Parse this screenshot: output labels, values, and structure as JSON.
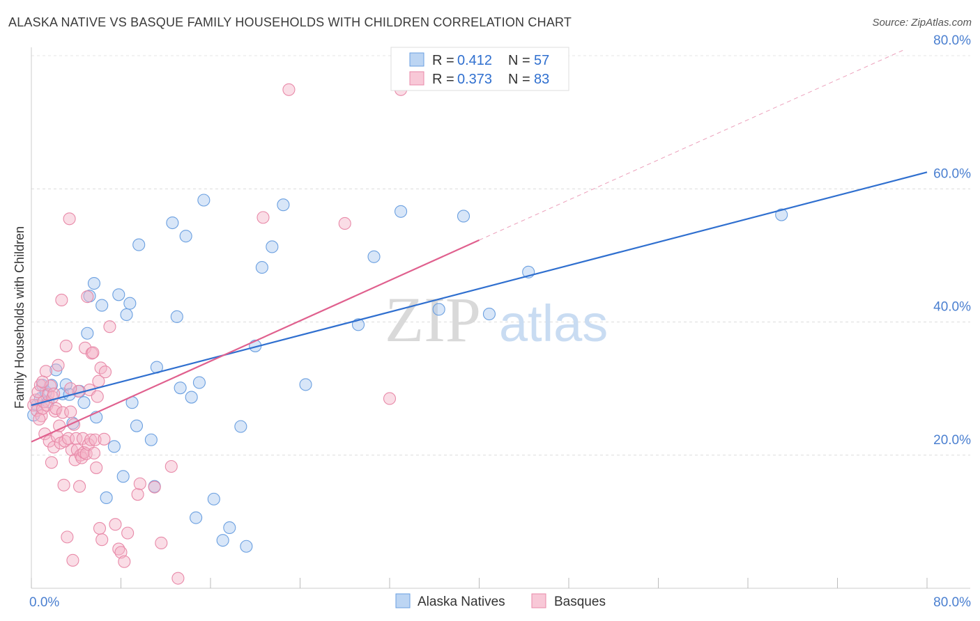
{
  "title": "ALASKA NATIVE VS BASQUE FAMILY HOUSEHOLDS WITH CHILDREN CORRELATION CHART",
  "source": "Source: ZipAtlas.com",
  "watermark": {
    "zip": "ZIP",
    "atlas": "atlas"
  },
  "legend_box": {
    "r_label": "R =",
    "n_label": "N =",
    "series": [
      {
        "r": "0.412",
        "n": "57"
      },
      {
        "r": "0.373",
        "n": "83"
      }
    ]
  },
  "colors": {
    "blue_fill": "#a8c8f0",
    "blue_stroke": "#6a9fe0",
    "blue_line": "#2f6fcf",
    "pink_fill": "#f5b3c8",
    "pink_stroke": "#e889a8",
    "pink_line": "#e0608e",
    "tick_text": "#4a7fd0"
  },
  "chart_data": {
    "type": "scatter",
    "title": "ALASKA NATIVE VS BASQUE FAMILY HOUSEHOLDS WITH CHILDREN CORRELATION CHART",
    "xlabel": "",
    "ylabel": "Family Households with Children",
    "xlim": [
      0,
      80
    ],
    "ylim": [
      0,
      80
    ],
    "x_tick_labels": {
      "0": "0.0%",
      "80": "80.0%"
    },
    "y_ticks": [
      {
        "value": 20,
        "label": "20.0%"
      },
      {
        "value": 40,
        "label": "40.0%"
      },
      {
        "value": 60,
        "label": "60.0%"
      },
      {
        "value": 80,
        "label": "80.0%"
      }
    ],
    "grid": true,
    "series": [
      {
        "name": "Alaska Natives",
        "color": "blue",
        "r": 0.412,
        "n": 57,
        "trend": {
          "x0": 0,
          "y0": 27.5,
          "x1": 80,
          "y1": 62.5
        },
        "points": [
          [
            0.2,
            26.0
          ],
          [
            0.5,
            27.5
          ],
          [
            0.8,
            28.5
          ],
          [
            1.0,
            30.5
          ],
          [
            1.3,
            29.5
          ],
          [
            1.5,
            28.0
          ],
          [
            1.8,
            30.5
          ],
          [
            2.2,
            32.8
          ],
          [
            2.8,
            29.2
          ],
          [
            3.1,
            30.6
          ],
          [
            3.4,
            29.1
          ],
          [
            3.7,
            24.8
          ],
          [
            4.3,
            29.6
          ],
          [
            4.7,
            27.9
          ],
          [
            5.0,
            38.3
          ],
          [
            5.2,
            43.9
          ],
          [
            5.6,
            45.8
          ],
          [
            5.8,
            25.7
          ],
          [
            6.3,
            42.5
          ],
          [
            6.7,
            13.6
          ],
          [
            7.4,
            21.3
          ],
          [
            7.8,
            44.1
          ],
          [
            8.2,
            16.8
          ],
          [
            8.5,
            41.1
          ],
          [
            8.8,
            42.8
          ],
          [
            9.0,
            27.9
          ],
          [
            9.4,
            24.4
          ],
          [
            9.6,
            51.6
          ],
          [
            10.7,
            22.3
          ],
          [
            11.0,
            15.3
          ],
          [
            11.2,
            33.2
          ],
          [
            12.6,
            54.9
          ],
          [
            13.0,
            40.8
          ],
          [
            13.3,
            30.1
          ],
          [
            13.8,
            52.9
          ],
          [
            14.3,
            28.7
          ],
          [
            14.7,
            10.6
          ],
          [
            15.0,
            30.9
          ],
          [
            15.4,
            58.3
          ],
          [
            16.3,
            13.4
          ],
          [
            17.1,
            7.2
          ],
          [
            17.7,
            9.1
          ],
          [
            18.7,
            24.3
          ],
          [
            19.2,
            6.3
          ],
          [
            20.0,
            36.4
          ],
          [
            20.6,
            48.2
          ],
          [
            21.5,
            51.3
          ],
          [
            22.5,
            57.6
          ],
          [
            24.5,
            30.6
          ],
          [
            29.2,
            39.6
          ],
          [
            30.6,
            49.8
          ],
          [
            33.0,
            56.6
          ],
          [
            36.4,
            41.9
          ],
          [
            38.6,
            55.9
          ],
          [
            40.9,
            41.2
          ],
          [
            44.4,
            47.5
          ],
          [
            67.0,
            56.1
          ]
        ]
      },
      {
        "name": "Basques",
        "color": "pink",
        "r": 0.373,
        "n": 83,
        "trend": {
          "x0": 0,
          "y0": 22.0,
          "x1": 40,
          "y1": 52.3
        },
        "trend_dashed": {
          "x0": 40,
          "y0": 52.3,
          "x1": 80,
          "y1": 82.6
        },
        "points": [
          [
            0.2,
            27.5
          ],
          [
            0.4,
            28.3
          ],
          [
            0.5,
            26.7
          ],
          [
            0.6,
            29.5
          ],
          [
            0.8,
            30.5
          ],
          [
            0.9,
            25.9
          ],
          [
            1.0,
            27.0
          ],
          [
            1.1,
            28.0
          ],
          [
            1.2,
            23.2
          ],
          [
            1.3,
            32.6
          ],
          [
            1.4,
            27.5
          ],
          [
            1.5,
            29.1
          ],
          [
            1.6,
            22.1
          ],
          [
            1.7,
            30.4
          ],
          [
            1.8,
            18.9
          ],
          [
            1.9,
            28.7
          ],
          [
            2.0,
            21.2
          ],
          [
            2.1,
            26.6
          ],
          [
            2.2,
            27.0
          ],
          [
            2.3,
            22.8
          ],
          [
            2.4,
            33.5
          ],
          [
            2.5,
            24.4
          ],
          [
            2.6,
            21.8
          ],
          [
            2.7,
            43.3
          ],
          [
            2.8,
            26.4
          ],
          [
            2.9,
            15.5
          ],
          [
            3.0,
            22.1
          ],
          [
            3.1,
            36.4
          ],
          [
            3.2,
            7.7
          ],
          [
            3.3,
            22.5
          ],
          [
            3.4,
            55.5
          ],
          [
            3.5,
            26.5
          ],
          [
            3.6,
            20.8
          ],
          [
            3.7,
            4.2
          ],
          [
            3.8,
            24.6
          ],
          [
            3.9,
            19.3
          ],
          [
            4.0,
            22.5
          ],
          [
            4.1,
            20.8
          ],
          [
            4.2,
            29.6
          ],
          [
            4.3,
            15.3
          ],
          [
            4.4,
            20.0
          ],
          [
            4.5,
            19.6
          ],
          [
            4.6,
            22.5
          ],
          [
            4.7,
            20.4
          ],
          [
            4.8,
            36.1
          ],
          [
            4.9,
            20.2
          ],
          [
            5.0,
            43.8
          ],
          [
            5.1,
            21.6
          ],
          [
            5.2,
            29.8
          ],
          [
            5.3,
            22.3
          ],
          [
            5.4,
            35.3
          ],
          [
            5.5,
            35.4
          ],
          [
            5.6,
            20.3
          ],
          [
            5.7,
            22.3
          ],
          [
            5.8,
            18.1
          ],
          [
            5.9,
            28.8
          ],
          [
            6.0,
            31.1
          ],
          [
            6.1,
            9.0
          ],
          [
            6.2,
            33.1
          ],
          [
            6.3,
            7.3
          ],
          [
            6.5,
            22.4
          ],
          [
            6.6,
            32.5
          ],
          [
            7.0,
            39.3
          ],
          [
            7.5,
            9.6
          ],
          [
            7.8,
            5.9
          ],
          [
            8.0,
            5.4
          ],
          [
            8.3,
            4.0
          ],
          [
            8.6,
            8.3
          ],
          [
            9.5,
            14.1
          ],
          [
            9.7,
            15.7
          ],
          [
            11.0,
            15.2
          ],
          [
            11.6,
            6.8
          ],
          [
            12.5,
            18.3
          ],
          [
            13.1,
            1.5
          ],
          [
            20.7,
            55.7
          ],
          [
            23.0,
            74.9
          ],
          [
            28.0,
            54.8
          ],
          [
            32.0,
            28.5
          ],
          [
            33.0,
            74.9
          ],
          [
            2.0,
            29.2
          ],
          [
            1.0,
            31.0
          ],
          [
            0.7,
            25.4
          ],
          [
            3.5,
            30.0
          ]
        ]
      }
    ],
    "legend": [
      "Alaska Natives",
      "Basques"
    ]
  }
}
